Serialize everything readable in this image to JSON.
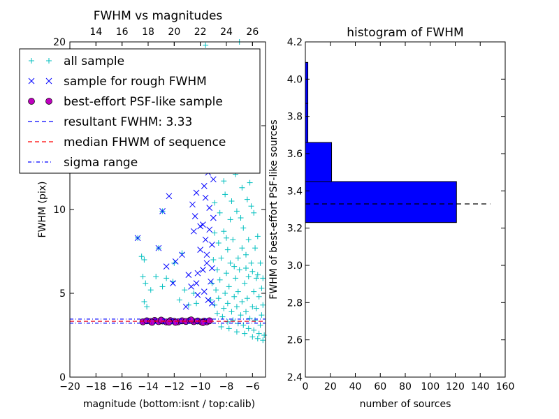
{
  "chart_data": [
    {
      "type": "scatter",
      "title": "FWHM vs magnitudes",
      "xlabel": "magnitude (bottom:isnt / top:calib)",
      "ylabel": "FWHM (pix)",
      "xlim": [
        -20,
        -5
      ],
      "ylim": [
        0,
        20
      ],
      "xticks": [
        -20,
        -18,
        -16,
        -14,
        -12,
        -10,
        -8,
        -6
      ],
      "xtick_labels": [
        "−20",
        "−18",
        "−16",
        "−14",
        "−12",
        "−10",
        "−8",
        "−6"
      ],
      "yticks": [
        0,
        5,
        10,
        15,
        20
      ],
      "ytick_labels": [
        "0",
        "5",
        "10",
        "15",
        "20"
      ],
      "top_axis": {
        "ticks": [
          14,
          16,
          18,
          20,
          22,
          24,
          26
        ],
        "tick_labels": [
          "14",
          "16",
          "18",
          "20",
          "22",
          "24",
          "26"
        ],
        "offset": 32
      },
      "legend": {
        "placement": "top-left",
        "entries": [
          {
            "label": "all sample",
            "marker": "plus",
            "color": "#00BFBF"
          },
          {
            "label": "sample for rough FWHM",
            "marker": "x",
            "color": "#0000FF"
          },
          {
            "label": "best-effort PSF-like sample",
            "marker": "circle",
            "color": "#BF00BF"
          },
          {
            "label": "resultant FWHM: 3.33",
            "marker": "dashed",
            "color": "#0000FF"
          },
          {
            "label": "median FHWM of sequence",
            "marker": "dashed",
            "color": "#FF0000"
          },
          {
            "label": "sigma range",
            "marker": "dashdot",
            "color": "#0000FF"
          }
        ]
      },
      "series": [
        {
          "name": "all sample",
          "marker": "plus",
          "color": "#00BFBF",
          "points": [
            [
              -14.8,
              8.3
            ],
            [
              -14.5,
              7.2
            ],
            [
              -14.3,
              7.0
            ],
            [
              -14.4,
              6.0
            ],
            [
              -14.2,
              5.6
            ],
            [
              -14.3,
              4.5
            ],
            [
              -14.1,
              4.2
            ],
            [
              -13.8,
              5.2
            ],
            [
              -13.4,
              6.0
            ],
            [
              -13.2,
              7.7
            ],
            [
              -12.9,
              5.4
            ],
            [
              -12.6,
              5.9
            ],
            [
              -12.1,
              5.7
            ],
            [
              -11.6,
              4.6
            ],
            [
              -11.2,
              5.2
            ],
            [
              -10.9,
              4.3
            ],
            [
              -10.5,
              5.0
            ],
            [
              -10.3,
              4.4
            ],
            [
              -12.9,
              9.9
            ],
            [
              -12.0,
              6.8
            ],
            [
              -11.4,
              7.4
            ],
            [
              -9.6,
              19.8
            ],
            [
              -9.3,
              17.3
            ],
            [
              -8.7,
              17.6
            ],
            [
              -8.3,
              19.4
            ],
            [
              -7.8,
              18.8
            ],
            [
              -7.0,
              20.0
            ],
            [
              -9.1,
              15.2
            ],
            [
              -8.6,
              14.3
            ],
            [
              -8.1,
              15.8
            ],
            [
              -7.5,
              14.9
            ],
            [
              -6.9,
              15.8
            ],
            [
              -6.6,
              13.7
            ],
            [
              -6.2,
              11.6
            ],
            [
              -8.8,
              12.4
            ],
            [
              -8.2,
              11.7
            ],
            [
              -7.9,
              12.6
            ],
            [
              -7.3,
              12.1
            ],
            [
              -6.8,
              11.3
            ],
            [
              -6.4,
              10.6
            ],
            [
              -5.9,
              9.8
            ],
            [
              -8.9,
              10.4
            ],
            [
              -8.5,
              9.8
            ],
            [
              -8.1,
              10.9
            ],
            [
              -7.7,
              9.4
            ],
            [
              -7.2,
              9.9
            ],
            [
              -6.7,
              8.9
            ],
            [
              -6.3,
              8.2
            ],
            [
              -5.8,
              7.7
            ],
            [
              -5.4,
              6.8
            ],
            [
              -8.9,
              8.6
            ],
            [
              -8.6,
              8.0
            ],
            [
              -8.2,
              8.7
            ],
            [
              -7.9,
              7.6
            ],
            [
              -7.5,
              8.2
            ],
            [
              -7.1,
              7.1
            ],
            [
              -6.8,
              7.7
            ],
            [
              -6.5,
              6.5
            ],
            [
              -6.1,
              6.8
            ],
            [
              -5.7,
              5.9
            ],
            [
              -5.3,
              5.3
            ],
            [
              -9.0,
              7.0
            ],
            [
              -8.7,
              6.4
            ],
            [
              -8.4,
              7.1
            ],
            [
              -8.0,
              6.2
            ],
            [
              -7.7,
              6.8
            ],
            [
              -7.3,
              5.9
            ],
            [
              -7.0,
              6.4
            ],
            [
              -6.6,
              5.6
            ],
            [
              -6.3,
              6.0
            ],
            [
              -5.9,
              5.1
            ],
            [
              -5.5,
              4.8
            ],
            [
              -5.2,
              4.3
            ],
            [
              -9.1,
              5.6
            ],
            [
              -8.8,
              5.2
            ],
            [
              -8.5,
              5.8
            ],
            [
              -8.1,
              5.0
            ],
            [
              -7.8,
              5.4
            ],
            [
              -7.4,
              4.8
            ],
            [
              -7.1,
              5.1
            ],
            [
              -6.8,
              4.5
            ],
            [
              -6.4,
              4.7
            ],
            [
              -6.0,
              4.2
            ],
            [
              -5.7,
              4.1
            ],
            [
              -5.3,
              3.7
            ],
            [
              -9.2,
              4.6
            ],
            [
              -8.9,
              4.3
            ],
            [
              -8.6,
              4.7
            ],
            [
              -8.2,
              4.1
            ],
            [
              -7.9,
              4.4
            ],
            [
              -7.6,
              3.9
            ],
            [
              -7.2,
              4.2
            ],
            [
              -6.9,
              3.7
            ],
            [
              -6.5,
              3.9
            ],
            [
              -6.2,
              3.5
            ],
            [
              -5.8,
              3.4
            ],
            [
              -5.4,
              3.1
            ],
            [
              -8.7,
              3.8
            ],
            [
              -8.3,
              3.6
            ],
            [
              -7.9,
              3.3
            ],
            [
              -7.5,
              3.4
            ],
            [
              -7.1,
              3.2
            ],
            [
              -6.7,
              3.1
            ],
            [
              -6.3,
              2.9
            ],
            [
              -5.9,
              2.8
            ],
            [
              -5.5,
              2.6
            ],
            [
              -5.1,
              2.5
            ],
            [
              -8.4,
              3.0
            ],
            [
              -7.8,
              2.9
            ],
            [
              -7.2,
              2.7
            ],
            [
              -6.6,
              2.6
            ],
            [
              -6.0,
              2.4
            ],
            [
              -5.6,
              2.3
            ],
            [
              -5.2,
              2.2
            ],
            [
              -8.0,
              8.3
            ],
            [
              -7.6,
              10.5
            ],
            [
              -7.4,
              6.6
            ],
            [
              -6.9,
              9.5
            ],
            [
              -6.5,
              7.3
            ],
            [
              -6.0,
              6.3
            ],
            [
              -5.6,
              6.1
            ],
            [
              -5.2,
              5.9
            ],
            [
              -8.3,
              13.2
            ],
            [
              -7.0,
              12.8
            ],
            [
              -6.1,
              10.2
            ],
            [
              -5.6,
              8.4
            ],
            [
              -8.6,
              16.5
            ],
            [
              -7.4,
              16.9
            ]
          ]
        },
        {
          "name": "sample for rough FWHM",
          "marker": "x",
          "color": "#0000FF",
          "points": [
            [
              -14.8,
              8.3
            ],
            [
              -13.2,
              7.7
            ],
            [
              -12.9,
              9.9
            ],
            [
              -12.6,
              6.6
            ],
            [
              -12.4,
              10.8
            ],
            [
              -12.1,
              5.6
            ],
            [
              -11.9,
              6.9
            ],
            [
              -11.4,
              7.3
            ],
            [
              -11.1,
              4.2
            ],
            [
              -10.9,
              6.1
            ],
            [
              -10.7,
              5.4
            ],
            [
              -10.6,
              10.3
            ],
            [
              -10.5,
              8.7
            ],
            [
              -10.4,
              9.6
            ],
            [
              -10.3,
              11.0
            ],
            [
              -10.1,
              12.5
            ],
            [
              -10.2,
              6.2
            ],
            [
              -10.0,
              7.6
            ],
            [
              -9.9,
              13.5
            ],
            [
              -9.8,
              9.1
            ],
            [
              -9.7,
              11.4
            ],
            [
              -9.6,
              8.2
            ],
            [
              -9.5,
              6.8
            ],
            [
              -9.4,
              12.2
            ],
            [
              -9.3,
              10.1
            ],
            [
              -9.2,
              5.7
            ],
            [
              -9.1,
              7.9
            ],
            [
              -9.0,
              9.5
            ],
            [
              -9.0,
              11.8
            ],
            [
              -9.7,
              5.1
            ],
            [
              -9.4,
              4.6
            ],
            [
              -9.1,
              4.4
            ],
            [
              -10.4,
              13.1
            ],
            [
              -9.6,
              14.2
            ],
            [
              -9.5,
              15.3
            ],
            [
              -9.2,
              14.6
            ],
            [
              -9.0,
              13.0
            ],
            [
              -10.2,
              4.9
            ],
            [
              -9.8,
              6.4
            ],
            [
              -9.3,
              8.8
            ],
            [
              -9.6,
              10.7
            ],
            [
              -10.0,
              9.0
            ],
            [
              -9.8,
              12.9
            ],
            [
              -9.1,
              6.5
            ],
            [
              -9.5,
              7.3
            ],
            [
              -10.3,
              5.6
            ]
          ]
        },
        {
          "name": "best-effort PSF-like sample",
          "marker": "circle",
          "color": "#BF00BF",
          "points": [
            [
              -14.4,
              3.3
            ],
            [
              -14.1,
              3.36
            ],
            [
              -13.8,
              3.32
            ],
            [
              -13.5,
              3.38
            ],
            [
              -13.2,
              3.31
            ],
            [
              -12.9,
              3.35
            ],
            [
              -12.6,
              3.29
            ],
            [
              -12.3,
              3.37
            ],
            [
              -12.0,
              3.33
            ],
            [
              -11.7,
              3.3
            ],
            [
              -11.4,
              3.36
            ],
            [
              -11.1,
              3.32
            ],
            [
              -10.8,
              3.38
            ],
            [
              -10.5,
              3.31
            ],
            [
              -10.2,
              3.35
            ],
            [
              -9.9,
              3.29
            ],
            [
              -9.7,
              3.34
            ],
            [
              -9.5,
              3.3
            ],
            [
              -9.3,
              3.36
            ],
            [
              -13.0,
              3.4
            ],
            [
              -11.9,
              3.27
            ],
            [
              -10.7,
              3.41
            ],
            [
              -9.8,
              3.26
            ],
            [
              -12.4,
              3.28
            ],
            [
              -13.7,
              3.27
            ]
          ]
        }
      ],
      "lines": [
        {
          "name": "resultant FWHM: 3.33",
          "y": 3.33,
          "style": "dashed",
          "color": "#0000FF"
        },
        {
          "name": "median FHWM of sequence",
          "y": 3.33,
          "style": "dashed",
          "color": "#FF0000"
        },
        {
          "name": "sigma range",
          "y": 3.22,
          "style": "dashdot",
          "color": "#0000FF"
        },
        {
          "name": "sigma range",
          "y": 3.46,
          "style": "dashdot",
          "color": "#0000FF"
        }
      ]
    },
    {
      "type": "bar",
      "orientation": "horizontal",
      "title": "histogram of FWHM",
      "xlabel": "number of sources",
      "ylabel": "FWHM of best-effort PSF-like sources",
      "xlim": [
        0,
        160
      ],
      "ylim": [
        2.4,
        4.2
      ],
      "xticks": [
        0,
        20,
        40,
        60,
        80,
        100,
        120,
        140,
        160
      ],
      "xtick_labels": [
        "0",
        "20",
        "40",
        "60",
        "80",
        "100",
        "120",
        "140",
        "160"
      ],
      "yticks": [
        2.4,
        2.6,
        2.8,
        3.0,
        3.2,
        3.4,
        3.6,
        3.8,
        4.0,
        4.2
      ],
      "ytick_labels": [
        "2.4",
        "2.6",
        "2.8",
        "3.0",
        "3.2",
        "3.4",
        "3.6",
        "3.8",
        "4.0",
        "4.2"
      ],
      "bar_color": "#0000FF",
      "bins": [
        {
          "low": 3.23,
          "high": 3.45,
          "count": 121
        },
        {
          "low": 3.45,
          "high": 3.66,
          "count": 21
        },
        {
          "low": 3.66,
          "high": 3.87,
          "count": 2
        },
        {
          "low": 3.87,
          "high": 4.09,
          "count": 2
        }
      ],
      "reference_line": {
        "y": 3.33,
        "style": "dashed",
        "color": "#000000",
        "x_end": 148
      }
    }
  ]
}
